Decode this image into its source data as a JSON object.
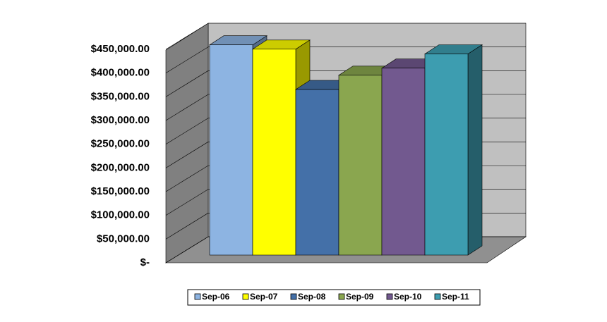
{
  "chart_data": {
    "type": "bar3d",
    "series": [
      {
        "name": "Sep-06",
        "color": "#8db4e2",
        "values": [
          443000
        ]
      },
      {
        "name": "Sep-07",
        "color": "#ffff00",
        "values": [
          434000
        ]
      },
      {
        "name": "Sep-08",
        "color": "#4470a8",
        "values": [
          349000
        ]
      },
      {
        "name": "Sep-09",
        "color": "#8aa64f",
        "values": [
          379000
        ]
      },
      {
        "name": "Sep-10",
        "color": "#72598f",
        "values": [
          394000
        ]
      },
      {
        "name": "Sep-11",
        "color": "#3d9db0",
        "values": [
          424000
        ]
      }
    ],
    "ylim": [
      0,
      450000
    ],
    "yticks": [
      {
        "value": 0,
        "label": "$-"
      },
      {
        "value": 50000,
        "label": "$50,000.00"
      },
      {
        "value": 100000,
        "label": "$100,000.00"
      },
      {
        "value": 150000,
        "label": "$150,000.00"
      },
      {
        "value": 200000,
        "label": "$200,000.00"
      },
      {
        "value": 250000,
        "label": "$250,000.00"
      },
      {
        "value": 300000,
        "label": "$300,000.00"
      },
      {
        "value": 350000,
        "label": "$350,000.00"
      },
      {
        "value": 400000,
        "label": "$400,000.00"
      },
      {
        "value": 450000,
        "label": "$450,000.00"
      }
    ],
    "grid": true,
    "legend": "bottom"
  }
}
